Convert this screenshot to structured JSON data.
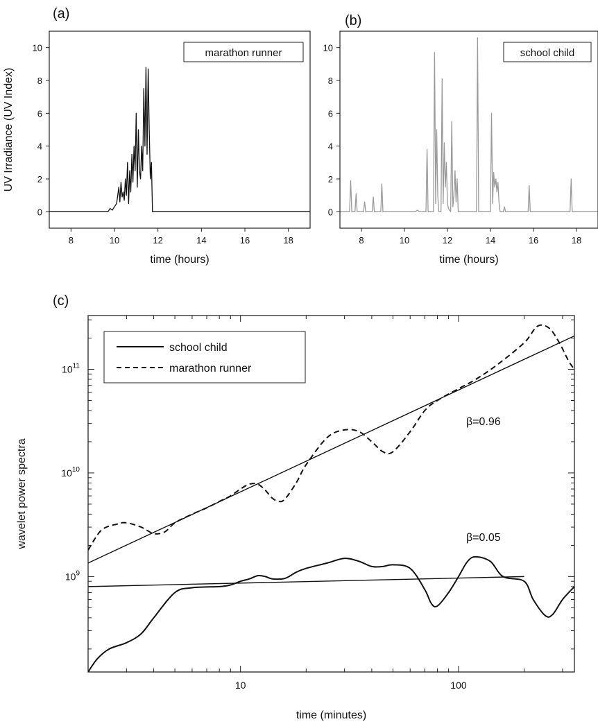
{
  "chart_data": [
    {
      "id": "a",
      "panel_label": "(a)",
      "type": "line",
      "legend": "marathon runner",
      "legend_placement": "top-right",
      "xlabel": "time (hours)",
      "ylabel": "UV Irradiance (UV Index)",
      "xlim": [
        7,
        19
      ],
      "ylim": [
        -1,
        11
      ],
      "xticks": [
        8,
        10,
        12,
        14,
        16,
        18
      ],
      "yticks": [
        0,
        2,
        4,
        6,
        8,
        10
      ],
      "line_color": "#111111",
      "x": [
        7,
        9.7,
        9.8,
        9.9,
        10.0,
        10.1,
        10.2,
        10.25,
        10.3,
        10.35,
        10.4,
        10.45,
        10.5,
        10.55,
        10.6,
        10.65,
        10.7,
        10.75,
        10.8,
        10.85,
        10.9,
        10.95,
        11.0,
        11.05,
        11.1,
        11.15,
        11.2,
        11.25,
        11.3,
        11.35,
        11.4,
        11.45,
        11.5,
        11.55,
        11.6,
        11.65,
        11.7,
        11.75,
        19
      ],
      "y": [
        0,
        0,
        0.2,
        0.1,
        0.3,
        0.5,
        1.5,
        0.6,
        1.8,
        0.9,
        1.2,
        0.7,
        2.0,
        1.0,
        3.0,
        0.5,
        2.5,
        1.2,
        3.5,
        1.8,
        4.0,
        2.5,
        6.0,
        1.5,
        5.0,
        2.5,
        2.0,
        4.0,
        2.5,
        7.5,
        4.0,
        8.8,
        3.5,
        8.7,
        5.0,
        2.0,
        3.0,
        0,
        0
      ]
    },
    {
      "id": "b",
      "panel_label": "(b)",
      "type": "line",
      "legend": "school child",
      "legend_placement": "top-right",
      "xlabel": "time (hours)",
      "ylabel": "",
      "xlim": [
        7,
        19
      ],
      "ylim": [
        -1,
        11
      ],
      "xticks": [
        8,
        10,
        12,
        14,
        16,
        18
      ],
      "yticks": [
        0,
        2,
        4,
        6,
        8,
        10
      ],
      "line_color": "#9a9a9a",
      "x": [
        7,
        7.45,
        7.5,
        7.55,
        7.7,
        7.75,
        7.8,
        8.1,
        8.15,
        8.2,
        8.5,
        8.55,
        8.6,
        8.9,
        8.95,
        9.0,
        10.5,
        10.6,
        10.7,
        11.0,
        11.05,
        11.1,
        11.35,
        11.4,
        11.45,
        11.5,
        11.55,
        11.6,
        11.7,
        11.75,
        11.8,
        11.85,
        11.9,
        11.95,
        12.0,
        12.05,
        12.15,
        12.2,
        12.25,
        12.3,
        12.35,
        12.4,
        12.45,
        12.5,
        13.35,
        13.4,
        13.45,
        13.5,
        14.0,
        14.05,
        14.1,
        14.15,
        14.2,
        14.25,
        14.3,
        14.35,
        14.4,
        14.45,
        14.6,
        14.65,
        14.7,
        15.75,
        15.8,
        15.85,
        17.7,
        17.75,
        17.8,
        19
      ],
      "y": [
        0,
        0,
        1.9,
        0,
        0,
        1.1,
        0,
        0,
        0.6,
        0,
        0,
        0.9,
        0,
        0,
        1.7,
        0,
        0,
        0.1,
        0,
        0,
        3.8,
        0,
        0,
        9.7,
        0.5,
        5.0,
        1.0,
        0,
        0,
        8.1,
        0.5,
        4.2,
        1.5,
        3.0,
        0.5,
        0.2,
        0,
        5.5,
        0.3,
        1.0,
        2.5,
        0.6,
        2.0,
        0,
        0,
        10.6,
        0,
        0,
        0,
        6.0,
        0.5,
        2.4,
        1.5,
        2.0,
        1.2,
        1.8,
        0.5,
        0,
        0,
        0.3,
        0,
        0,
        1.6,
        0,
        0,
        2.0,
        0,
        0
      ]
    },
    {
      "id": "c",
      "panel_label": "(c)",
      "type": "line",
      "xlabel": "time (minutes)",
      "ylabel": "wavelet power spectra",
      "x_scale": "log",
      "y_scale": "log",
      "xlim": [
        2,
        340
      ],
      "ylim": [
        120000000.0,
        330000000000.0
      ],
      "xticks": [
        {
          "value": 10,
          "label": "10"
        },
        {
          "value": 100,
          "label": "100"
        }
      ],
      "yticks": [
        {
          "value": 1000000000.0,
          "base": "10",
          "exp": "9"
        },
        {
          "value": 10000000000.0,
          "base": "10",
          "exp": "10"
        },
        {
          "value": 100000000000.0,
          "base": "10",
          "exp": "11"
        }
      ],
      "legend_placement": "top-left",
      "series": [
        {
          "name": "school child",
          "style": "solid",
          "x": [
            2,
            2.2,
            2.5,
            3.0,
            3.5,
            4.0,
            5.0,
            6.0,
            8.0,
            9.0,
            10.0,
            11.0,
            12.0,
            13.0,
            14.0,
            16.0,
            18.0,
            20.0,
            25.0,
            30.0,
            35.0,
            40.0,
            45.0,
            50.0,
            60.0,
            70.0,
            75.0,
            80.0,
            90.0,
            100.0,
            110.0,
            120.0,
            140.0,
            160.0,
            200.0,
            220.0,
            250.0,
            270.0,
            300.0,
            340.0
          ],
          "y": [
            120000000.0,
            160000000.0,
            200000000.0,
            230000000.0,
            280000000.0,
            400000000.0,
            700000000.0,
            780000000.0,
            800000000.0,
            830000000.0,
            900000000.0,
            950000000.0,
            1020000000.0,
            1000000000.0,
            950000000.0,
            960000000.0,
            1100000000.0,
            1200000000.0,
            1350000000.0,
            1500000000.0,
            1400000000.0,
            1250000000.0,
            1250000000.0,
            1300000000.0,
            1200000000.0,
            750000000.0,
            550000000.0,
            520000000.0,
            700000000.0,
            1000000000.0,
            1400000000.0,
            1550000000.0,
            1400000000.0,
            1000000000.0,
            900000000.0,
            600000000.0,
            420000000.0,
            430000000.0,
            600000000.0,
            800000000.0
          ]
        },
        {
          "name": "marathon runner",
          "style": "dashed",
          "x": [
            2,
            2.3,
            2.7,
            3.0,
            3.5,
            4.0,
            4.5,
            5.0,
            6.0,
            7.0,
            8.0,
            9.0,
            10.0,
            11.0,
            12.0,
            13.0,
            14.0,
            15.0,
            16.0,
            18.0,
            20.0,
            25.0,
            30.0,
            35.0,
            40.0,
            45.0,
            50.0,
            60.0,
            70.0,
            80.0,
            100.0,
            120.0,
            150.0,
            200.0,
            230.0,
            260.0,
            290.0,
            320.0,
            340.0
          ],
          "y": [
            1800000000.0,
            2800000000.0,
            3200000000.0,
            3300000000.0,
            3000000000.0,
            2600000000.0,
            2700000000.0,
            3300000000.0,
            4000000000.0,
            4600000000.0,
            5300000000.0,
            6000000000.0,
            7000000000.0,
            7800000000.0,
            7800000000.0,
            6800000000.0,
            5700000000.0,
            5300000000.0,
            5600000000.0,
            8000000000.0,
            12000000000.0,
            22000000000.0,
            26000000000.0,
            25000000000.0,
            20000000000.0,
            16000000000.0,
            16000000000.0,
            25000000000.0,
            40000000000.0,
            50000000000.0,
            65000000000.0,
            80000000000.0,
            110000000000.0,
            180000000000.0,
            260000000000.0,
            250000000000.0,
            180000000000.0,
            120000000000.0,
            100000000000.0
          ]
        }
      ],
      "fits": [
        {
          "label": "β=0.96",
          "x": [
            2,
            340
          ],
          "y": [
            1350000000.0,
            210000000000.0
          ]
        },
        {
          "label": "β=0.05",
          "x": [
            2,
            200
          ],
          "y": [
            800000000.0,
            1000000000.0
          ]
        }
      ]
    }
  ]
}
